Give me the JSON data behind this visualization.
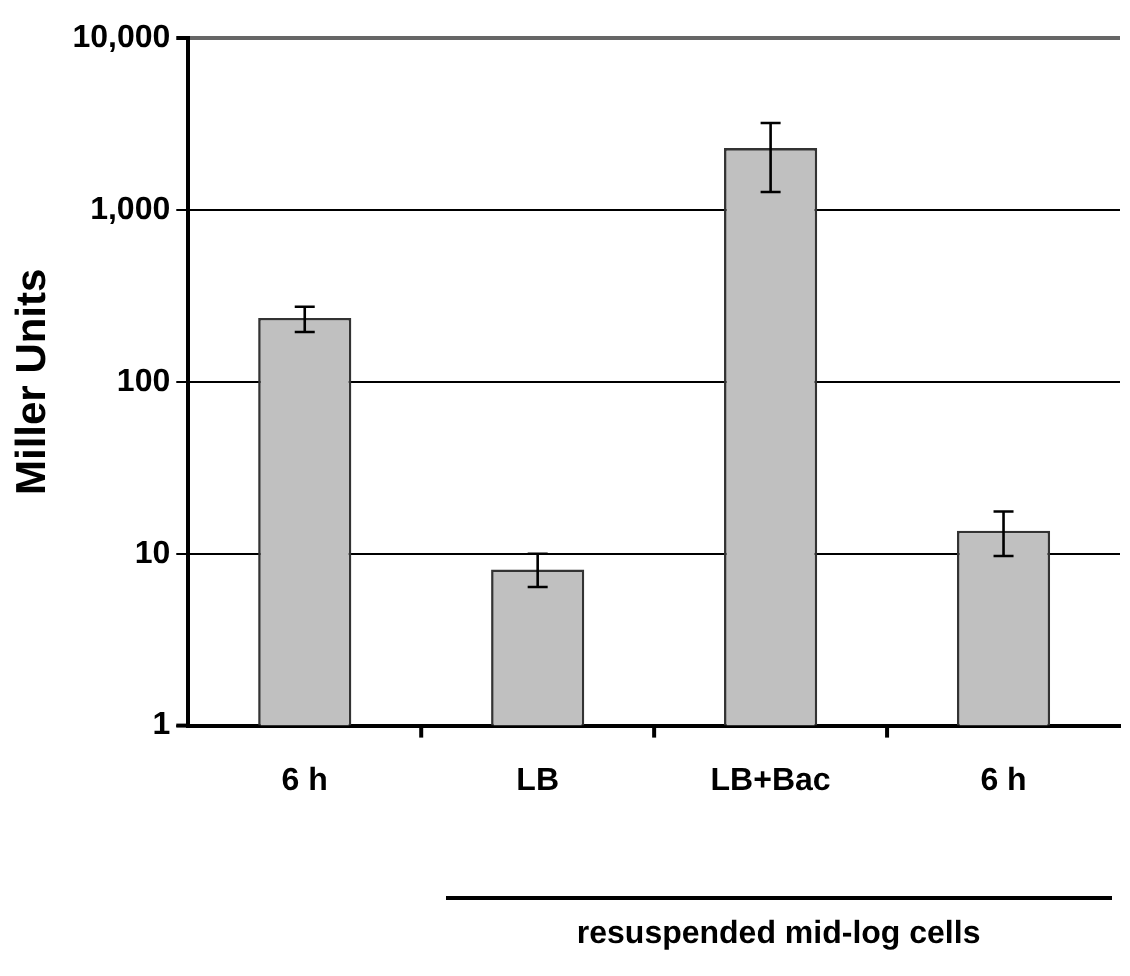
{
  "chart_data": {
    "type": "bar",
    "ylabel": "Miller Units",
    "categories": [
      "6 h",
      "LB",
      "LB+Bac",
      "6 h"
    ],
    "values": [
      235,
      8.1,
      2290,
      13.6
    ],
    "color": "#c0c0c0",
    "errors": [
      [
        195,
        273
      ],
      [
        6.4,
        10
      ],
      [
        1270,
        3200
      ],
      [
        9.7,
        17.6
      ]
    ],
    "log": true,
    "ylim": [
      1,
      10000
    ],
    "yticks": [
      1,
      10,
      100,
      {
        "value": 1000,
        "label": "1,000"
      },
      {
        "value": 10000,
        "label": "10,000"
      }
    ],
    "grid": "y",
    "legend": false,
    "annotations": [
      "resuspended mid-log cells"
    ]
  }
}
